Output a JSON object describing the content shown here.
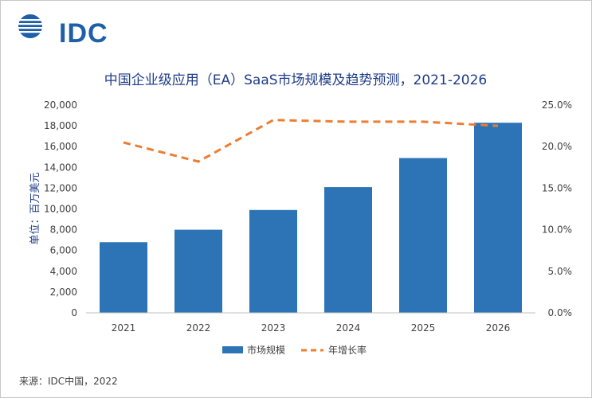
{
  "logo": {
    "text": "IDC"
  },
  "source": "来源：IDC中国，2022",
  "chart_data": {
    "type": "bar",
    "title": "中国企业级应用（EA）SaaS市场规模及趋势预测，2021-2026",
    "categories": [
      "2021",
      "2022",
      "2023",
      "2024",
      "2025",
      "2026"
    ],
    "series": [
      {
        "name": "市场规模",
        "type": "bar",
        "axis": "left",
        "color": "#2c74b6",
        "values": [
          6800,
          8000,
          9900,
          12100,
          14900,
          18300
        ]
      },
      {
        "name": "年增长率",
        "type": "line",
        "style": "dashed",
        "axis": "right",
        "color": "#ed7d31",
        "values": [
          20.5,
          18.2,
          23.2,
          23.0,
          23.0,
          22.5
        ]
      }
    ],
    "ylabel": "单位：百万美元",
    "ylim": [
      0,
      20000
    ],
    "y_ticks": [
      "0",
      "2,000",
      "4,000",
      "6,000",
      "8,000",
      "10,000",
      "12,000",
      "14,000",
      "16,000",
      "18,000",
      "20,000"
    ],
    "y2lim": [
      0,
      25
    ],
    "y2_ticks": [
      "0.0%",
      "5.0%",
      "10.0%",
      "15.0%",
      "20.0%",
      "25.0%"
    ],
    "legend_position": "bottom",
    "grid": false
  }
}
